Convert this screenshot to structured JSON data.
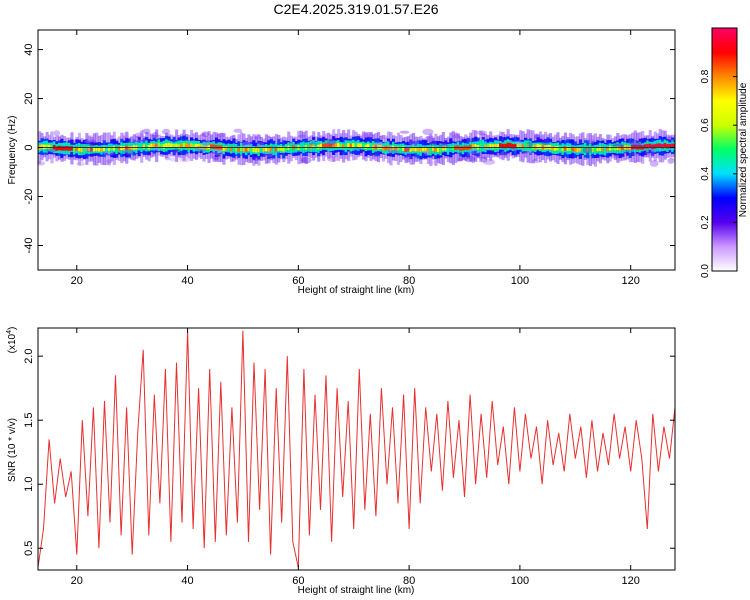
{
  "title": "C2E4.2025.319.01.57.E26",
  "chart_data": [
    {
      "type": "heatmap",
      "xlabel": "Height of straight line (km)",
      "ylabel": "Frequency (Hz)",
      "xlim": [
        13,
        128
      ],
      "ylim": [
        -50,
        48
      ],
      "xticks": [
        20,
        40,
        60,
        80,
        100,
        120
      ],
      "yticks": [
        40,
        20,
        0,
        -20,
        -40
      ],
      "band_center_freq": 0,
      "colorbar": {
        "label": "Normalized spectral amplitude",
        "range": [
          0,
          1
        ],
        "ticks": [
          0.0,
          0.2,
          0.4,
          0.6,
          0.8
        ],
        "colors": [
          "#ffffff",
          "#cc99ff",
          "#5500ee",
          "#0000ff",
          "#00e0ff",
          "#00ff66",
          "#ccff00",
          "#ffff00",
          "#ff8800",
          "#ff0000",
          "#ff0066"
        ]
      },
      "peak_amplitude_segments": [
        {
          "x": [
            15.5,
            19
          ],
          "amplitude": 0.9
        },
        {
          "x": [
            44,
            46
          ],
          "amplitude": 0.85
        },
        {
          "x": [
            64,
            66
          ],
          "amplitude": 0.85
        },
        {
          "x": [
            79,
            80
          ],
          "amplitude": 0.85
        },
        {
          "x": [
            88,
            91
          ],
          "amplitude": 0.85
        },
        {
          "x": [
            96,
            99
          ],
          "amplitude": 0.9
        },
        {
          "x": [
            120,
            128
          ],
          "amplitude": 0.95
        }
      ]
    },
    {
      "type": "line",
      "xlabel": "Height of straight line (km)",
      "ylabel": "SNR (10 * v/v)",
      "multiplier": "(x10^4)",
      "xlim": [
        13,
        128
      ],
      "ylim": [
        0.33,
        2.22
      ],
      "xticks": [
        20,
        40,
        60,
        80,
        100,
        120
      ],
      "yticks": [
        2.0,
        1.5,
        1.0,
        0.5
      ],
      "series": [
        {
          "color": "#e83030",
          "x": [
            13,
            14,
            15,
            16,
            17,
            18,
            19,
            20,
            21,
            22,
            23,
            24,
            25,
            26,
            27,
            28,
            29,
            30,
            31,
            32,
            33,
            34,
            35,
            36,
            37,
            38,
            39,
            40,
            41,
            42,
            43,
            44,
            45,
            46,
            47,
            48,
            49,
            50,
            51,
            52,
            53,
            54,
            55,
            56,
            57,
            58,
            59,
            60,
            61,
            62,
            63,
            64,
            65,
            66,
            67,
            68,
            69,
            70,
            71,
            72,
            73,
            74,
            75,
            76,
            77,
            78,
            79,
            80,
            81,
            82,
            83,
            84,
            85,
            86,
            87,
            88,
            89,
            90,
            91,
            92,
            93,
            94,
            95,
            96,
            97,
            98,
            99,
            100,
            101,
            102,
            103,
            104,
            105,
            106,
            107,
            108,
            109,
            110,
            111,
            112,
            113,
            114,
            115,
            116,
            117,
            118,
            119,
            120,
            121,
            122,
            123,
            124,
            125,
            126,
            127,
            128
          ],
          "values": [
            0.35,
            0.65,
            1.35,
            0.85,
            1.2,
            0.9,
            1.1,
            0.45,
            1.5,
            0.75,
            1.6,
            0.5,
            1.65,
            0.7,
            1.85,
            0.6,
            1.6,
            0.45,
            1.4,
            2.05,
            0.6,
            1.7,
            0.85,
            1.9,
            0.55,
            1.95,
            0.7,
            2.2,
            0.65,
            1.75,
            0.5,
            1.9,
            0.55,
            1.8,
            0.6,
            1.6,
            0.7,
            2.2,
            0.55,
            1.95,
            0.8,
            1.9,
            0.45,
            1.75,
            0.7,
            2.0,
            0.55,
            0.35,
            1.9,
            0.6,
            1.7,
            0.8,
            1.85,
            0.55,
            1.75,
            0.9,
            1.65,
            0.65,
            1.9,
            0.8,
            1.55,
            0.75,
            1.75,
            1.0,
            1.6,
            0.85,
            1.7,
            0.65,
            1.75,
            0.85,
            1.6,
            1.1,
            1.55,
            0.95,
            1.65,
            1.05,
            1.5,
            0.9,
            1.7,
            1.0,
            1.55,
            1.05,
            1.65,
            1.15,
            1.45,
            1.0,
            1.6,
            1.1,
            1.55,
            1.2,
            1.45,
            1.0,
            1.5,
            1.15,
            1.4,
            1.1,
            1.55,
            1.2,
            1.45,
            1.05,
            1.5,
            1.1,
            1.4,
            1.15,
            1.55,
            1.2,
            1.45,
            1.1,
            1.5,
            1.2,
            0.65,
            1.55,
            1.1,
            1.45,
            1.2,
            1.6
          ]
        }
      ]
    }
  ]
}
